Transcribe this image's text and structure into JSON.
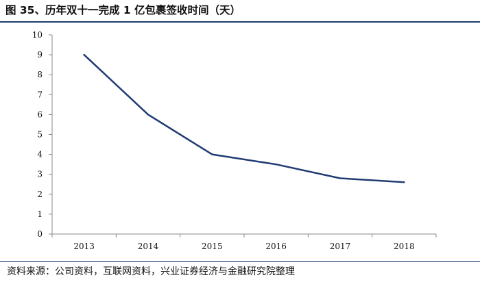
{
  "title": "图 35、历年双十一完成 1 亿包裹签收时间（天）",
  "source": "资料来源：公司资料，互联网资料，兴业证券经济与金融研究院整理",
  "colors": {
    "rule": "#1f3b73",
    "line": "#1f3b73",
    "axis": "#888888"
  },
  "chart_data": {
    "type": "line",
    "title": "图 35、历年双十一完成 1 亿包裹签收时间（天）",
    "xlabel": "",
    "ylabel": "",
    "categories": [
      "2013",
      "2014",
      "2015",
      "2016",
      "2017",
      "2018"
    ],
    "series": [
      {
        "values": [
          9,
          6,
          4,
          3.5,
          2.8,
          2.6
        ]
      }
    ],
    "ylim": [
      0,
      10
    ],
    "yticks": [
      "0",
      "1",
      "2",
      "3",
      "4",
      "5",
      "6",
      "7",
      "8",
      "9",
      "10"
    ],
    "grid": false,
    "legend": "none"
  }
}
